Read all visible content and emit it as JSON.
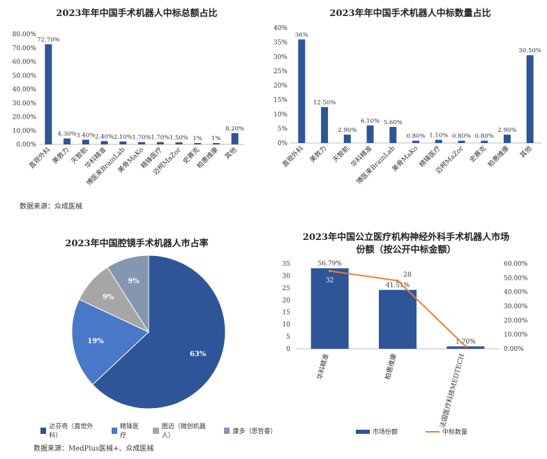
{
  "chart_data": [
    {
      "type": "bar",
      "title": "2023年年中国手术机器人中标总额占比",
      "categories": [
        "直观外科",
        "美敦力",
        "天智航",
        "华科精准",
        "博医来BrainLab",
        "美骨MaKo",
        "精锋医疗",
        "迈柯MaZor",
        "史赛克",
        "柏惠维康",
        "其他"
      ],
      "values": [
        72.7,
        4.3,
        3.4,
        2.4,
        2.1,
        1.7,
        1.7,
        1.5,
        1,
        1,
        8.2
      ],
      "value_labels": [
        "72.70%",
        "4.30%",
        "3.40%",
        "2.40%",
        "2.10%",
        "1.70%",
        "1.70%",
        "1.50%",
        "1%",
        "1%",
        "8.20%"
      ],
      "ylim": [
        0,
        80
      ],
      "yticks": [
        "0.00%",
        "10.00%",
        "20.00%",
        "30.00%",
        "40.00%",
        "50.00%",
        "60.00%",
        "70.00%",
        "80.00%"
      ],
      "color": "#2e5597"
    },
    {
      "type": "bar",
      "title": "2023年年中国手术机器人中标数量占比",
      "categories": [
        "直观外科",
        "美敦力",
        "天智航",
        "华科精准",
        "博医来BrainLab",
        "美骨MaKo",
        "精锋医疗",
        "迈柯MaZor",
        "史赛克",
        "柏惠维康",
        "其他"
      ],
      "values": [
        36,
        12.5,
        2.9,
        6.1,
        5.6,
        0.8,
        1.1,
        0.8,
        0.8,
        2.9,
        30.5
      ],
      "value_labels": [
        "36%",
        "12.50%",
        "2.90%",
        "6.10%",
        "5.60%",
        "0.80%",
        "1.10%",
        "0.80%",
        "0.80%",
        "2.90%",
        "30.50%"
      ],
      "ylim": [
        0,
        40
      ],
      "yticks": [
        "0%",
        "5%",
        "10%",
        "15%",
        "20%",
        "25%",
        "30%",
        "35%",
        "40%"
      ],
      "color": "#2e5597"
    },
    {
      "type": "pie",
      "title": "2023年中国腔镜手术机器人市占率",
      "slices": [
        {
          "name": "达芬奇（直觉外科）",
          "value": 63,
          "label": "63%",
          "color": "#2e5597"
        },
        {
          "name": "精锋医疗",
          "value": 19,
          "label": "19%",
          "color": "#4a78c8"
        },
        {
          "name": "图迈（微创机器人）",
          "value": 9,
          "label": "9%",
          "color": "#a6a6a6"
        },
        {
          "name": "康多（思哲睿）",
          "value": 9,
          "label": "9%",
          "color": "#8496b0"
        }
      ]
    },
    {
      "type": "bar",
      "title": "2023年中国公立医疗机构神经外科手术机器人市场份额（按公开中标金额）",
      "categories": [
        "华科精准",
        "柏惠维康",
        "法国医疗科技MEDTECH"
      ],
      "series": [
        {
          "name": "市场份额",
          "values": [
            56.79,
            41.51,
            1.7
          ],
          "labels": [
            "56.79%",
            "41.51%",
            "1.70%"
          ],
          "color": "#2e5597"
        },
        {
          "name": "中标数量",
          "values": [
            32,
            28,
            1
          ],
          "labels": [
            "32",
            "28",
            ""
          ],
          "color": "#ed7d31"
        }
      ],
      "left_ylim": [
        0,
        35
      ],
      "left_yticks": [
        "0",
        "5",
        "10",
        "15",
        "20",
        "25",
        "30",
        "35"
      ],
      "right_ylim": [
        0,
        60
      ],
      "right_yticks": [
        "0.00%",
        "10.00%",
        "20.00%",
        "30.00%",
        "40.00%",
        "50.00%",
        "60.00%"
      ]
    }
  ],
  "sources": {
    "top_left": "数据来源：众成医械",
    "bottom_left": "数据来源：MedPlus医械+、众成医械"
  }
}
